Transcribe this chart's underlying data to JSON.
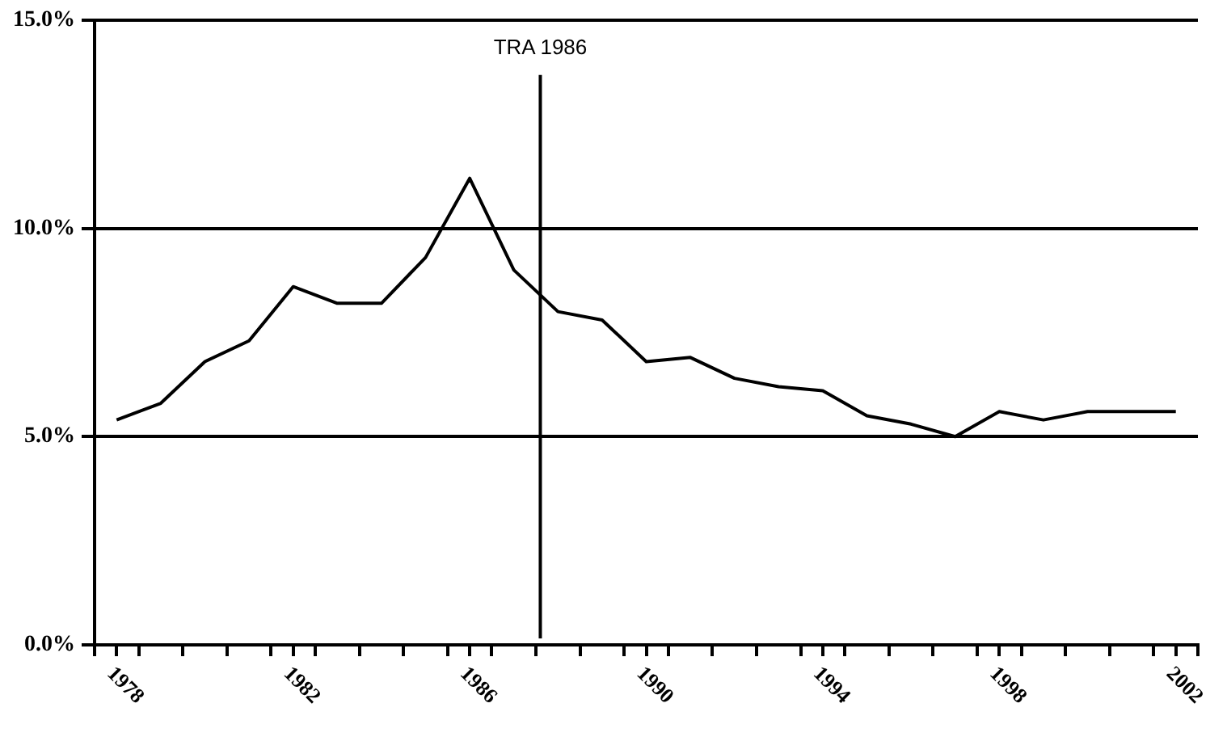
{
  "chart_data": {
    "type": "line",
    "x": [
      1978,
      1979,
      1980,
      1981,
      1982,
      1983,
      1984,
      1985,
      1986,
      1987,
      1988,
      1989,
      1990,
      1991,
      1992,
      1993,
      1994,
      1995,
      1996,
      1997,
      1998,
      1999,
      2000,
      2001,
      2002
    ],
    "series": [
      {
        "color": "#000000",
        "values": [
          5.4,
          5.8,
          6.8,
          7.3,
          8.6,
          8.2,
          8.2,
          9.3,
          11.2,
          9.0,
          8.0,
          7.8,
          6.8,
          6.9,
          6.4,
          6.2,
          6.1,
          5.5,
          5.3,
          5.0,
          5.6,
          5.4,
          5.6,
          5.6,
          5.6
        ]
      }
    ],
    "xlim": [
      1977.5,
      2002.5
    ],
    "xticks": [
      {
        "value": 1977.5,
        "label": null
      },
      {
        "value": 1978,
        "label": "1978"
      },
      {
        "value": 1978.5,
        "label": null
      },
      {
        "value": 1979.5,
        "label": null
      },
      {
        "value": 1980.5,
        "label": null
      },
      {
        "value": 1981.5,
        "label": null
      },
      {
        "value": 1982,
        "label": "1982"
      },
      {
        "value": 1982.5,
        "label": null
      },
      {
        "value": 1983.5,
        "label": null
      },
      {
        "value": 1984.5,
        "label": null
      },
      {
        "value": 1985.5,
        "label": null
      },
      {
        "value": 1986,
        "label": "1986"
      },
      {
        "value": 1986.5,
        "label": null
      },
      {
        "value": 1987.5,
        "label": null
      },
      {
        "value": 1988.5,
        "label": null
      },
      {
        "value": 1989.5,
        "label": null
      },
      {
        "value": 1990,
        "label": "1990"
      },
      {
        "value": 1990.5,
        "label": null
      },
      {
        "value": 1991.5,
        "label": null
      },
      {
        "value": 1992.5,
        "label": null
      },
      {
        "value": 1993.5,
        "label": null
      },
      {
        "value": 1994,
        "label": "1994"
      },
      {
        "value": 1994.5,
        "label": null
      },
      {
        "value": 1995.5,
        "label": null
      },
      {
        "value": 1996.5,
        "label": null
      },
      {
        "value": 1997.5,
        "label": null
      },
      {
        "value": 1998,
        "label": "1998"
      },
      {
        "value": 1998.5,
        "label": null
      },
      {
        "value": 1999.5,
        "label": null
      },
      {
        "value": 2000.5,
        "label": null
      },
      {
        "value": 2001.5,
        "label": null
      },
      {
        "value": 2002,
        "label": "2002"
      },
      {
        "value": 2002.5,
        "label": null
      }
    ],
    "ylim": [
      0,
      15
    ],
    "yticks": [
      {
        "value": 0,
        "label": "0.0%"
      },
      {
        "value": 5,
        "label": "5.0%"
      },
      {
        "value": 10,
        "label": "10.0%"
      },
      {
        "value": 15,
        "label": "15.0%"
      }
    ],
    "ref_lines": [
      {
        "axis": "x",
        "value": 1987.6,
        "label": "TRA 1986",
        "color": "#000000"
      }
    ],
    "grid": "y",
    "legend": false,
    "marker": "none",
    "line_style": "solid"
  }
}
